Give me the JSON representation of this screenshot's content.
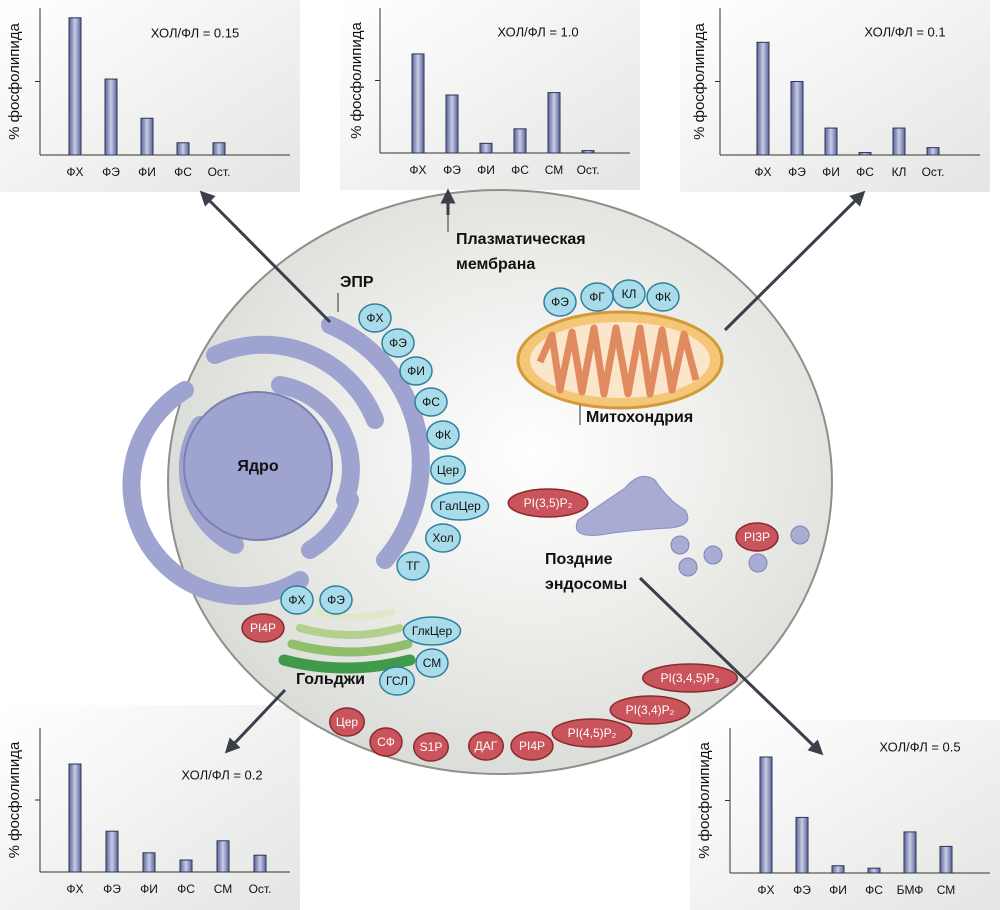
{
  "chart_data": [
    {
      "type": "bar",
      "ylabel": "% фосфолипида",
      "annotation": "ХОЛ/ФЛ = 0.15",
      "color": "#7d86b8",
      "categories": [
        "ФХ",
        "ФЭ",
        "ФИ",
        "ФС",
        "Ост."
      ],
      "values": [
        56,
        31,
        15,
        5,
        5
      ],
      "ylim": [
        0,
        60
      ]
    },
    {
      "type": "bar",
      "ylabel": "% фосфолипида",
      "annotation": "ХОЛ/ФЛ = 1.0",
      "color": "#7d86b8",
      "categories": [
        "ФХ",
        "ФЭ",
        "ФИ",
        "ФС",
        "СМ",
        "Ост."
      ],
      "values": [
        41,
        24,
        4,
        10,
        25,
        1
      ],
      "ylim": [
        0,
        60
      ]
    },
    {
      "type": "bar",
      "ylabel": "% фосфолипида",
      "annotation": "ХОЛ/ФЛ = 0.1",
      "color": "#7d86b8",
      "categories": [
        "ФХ",
        "ФЭ",
        "ФИ",
        "ФС",
        "КЛ",
        "Ост."
      ],
      "values": [
        46,
        30,
        11,
        1,
        11,
        3
      ],
      "ylim": [
        0,
        60
      ]
    },
    {
      "type": "bar",
      "ylabel": "% фосфолипида",
      "annotation": "ХОЛ/ФЛ = 0.2",
      "color": "#7d86b8",
      "categories": [
        "ФХ",
        "ФЭ",
        "ФИ",
        "ФС",
        "СМ",
        "Ост."
      ],
      "values": [
        45,
        17,
        8,
        5,
        13,
        7
      ],
      "ylim": [
        0,
        60
      ]
    },
    {
      "type": "bar",
      "ylabel": "% фосфолипида",
      "annotation": "ХОЛ/ФЛ = 0.5",
      "color": "#7d86b8",
      "categories": [
        "ФХ",
        "ФЭ",
        "ФИ",
        "ФС",
        "БМФ",
        "СМ"
      ],
      "values": [
        48,
        23,
        3,
        2,
        17,
        11
      ],
      "ylim": [
        0,
        60
      ]
    }
  ],
  "diagram": {
    "labels": {
      "er": "ЭПР",
      "nucleus": "Ядро",
      "plasma_membrane": [
        "Плазматическая",
        "мембрана"
      ],
      "mitochondrion": "Митохондрия",
      "golgi": "Гольджи",
      "endosomes": [
        "Поздние",
        "эндосомы"
      ]
    },
    "er_lipids": [
      "ФХ",
      "ФЭ",
      "ФИ",
      "ФС",
      "ФК",
      "Цер",
      "ГалЦер",
      "Хол",
      "ТГ"
    ],
    "mito_lipids": [
      "ФЭ",
      "ФГ",
      "КЛ",
      "ФК"
    ],
    "golgi_lipids": [
      "ФХ",
      "ФЭ",
      "ГлкЦер",
      "СМ",
      "ГСЛ"
    ],
    "golgi_signaling": [
      "PI4P"
    ],
    "membrane_signaling": [
      "Цер",
      "СФ",
      "S1P",
      "ДАГ",
      "PI4P",
      "PI(4,5)P₂",
      "PI(3,4)P₂",
      "PI(3,4,5)P₃"
    ],
    "endosome_signaling": [
      "PI(3,5)P₂",
      "PI3P"
    ]
  }
}
